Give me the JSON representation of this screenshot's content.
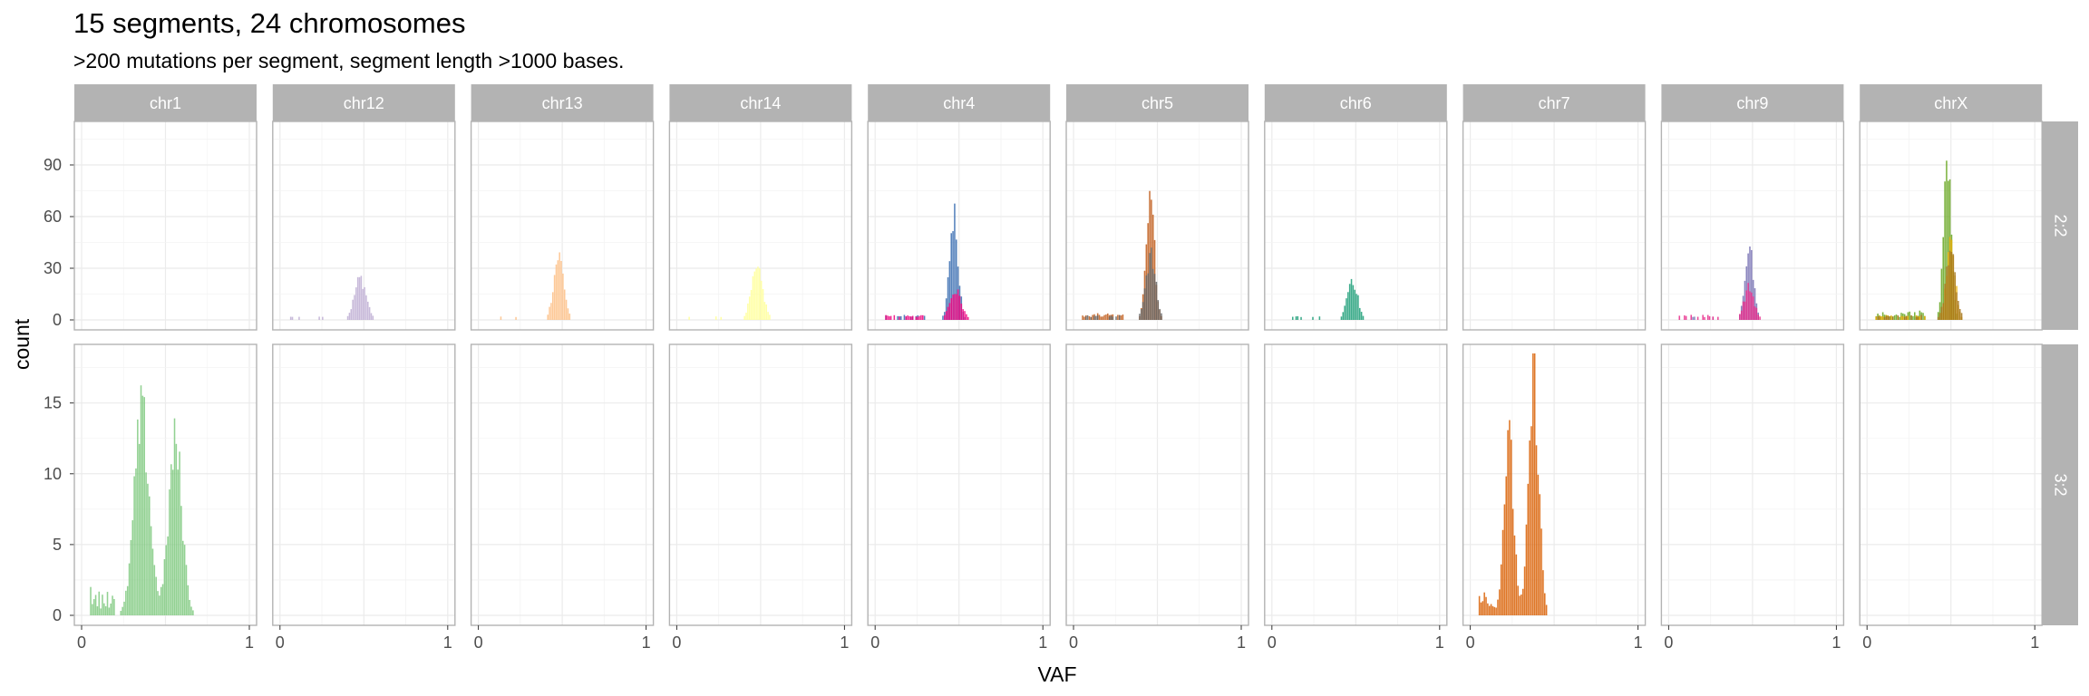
{
  "title": "15 segments, 24 chromosomes",
  "subtitle": ">200 mutations per segment, segment length >1000 bases.",
  "chart_data": {
    "type": "histogram",
    "xlabel": "VAF",
    "ylabel": "count",
    "xlim": [
      0,
      1
    ],
    "x_ticks": [
      0,
      1
    ],
    "grid": true,
    "facet_columns": [
      "chr1",
      "chr12",
      "chr13",
      "chr14",
      "chr4",
      "chr5",
      "chr6",
      "chr7",
      "chr9",
      "chrX"
    ],
    "facet_rows": [
      {
        "label": "2:2",
        "ylim": [
          0,
          110
        ],
        "y_ticks": [
          0,
          30,
          60,
          90
        ]
      },
      {
        "label": "3:2",
        "ylim": [
          0,
          18.5
        ],
        "y_ticks": [
          0,
          5,
          10,
          15
        ]
      }
    ],
    "panels": [
      {
        "row": "2:2",
        "col": "chr12",
        "segments": [
          {
            "color": "#beaed4",
            "peaks": [
              {
                "center": 0.48,
                "height": 26,
                "sd": 0.035
              }
            ],
            "tail": {
              "from": 0.05,
              "to": 0.3,
              "level": 2
            }
          }
        ]
      },
      {
        "row": "2:2",
        "col": "chr13",
        "segments": [
          {
            "color": "#fdc086",
            "peaks": [
              {
                "center": 0.48,
                "height": 40,
                "sd": 0.03
              }
            ],
            "tail": {
              "from": 0.05,
              "to": 0.3,
              "level": 2
            }
          }
        ]
      },
      {
        "row": "2:2",
        "col": "chr14",
        "segments": [
          {
            "color": "#ffff99",
            "peaks": [
              {
                "center": 0.48,
                "height": 30,
                "sd": 0.035
              }
            ],
            "tail": {
              "from": 0.05,
              "to": 0.3,
              "level": 2
            }
          }
        ]
      },
      {
        "row": "2:2",
        "col": "chr4",
        "segments": [
          {
            "color": "#386cb0",
            "peaks": [
              {
                "center": 0.47,
                "height": 66,
                "sd": 0.025
              }
            ],
            "tail": {
              "from": 0.05,
              "to": 0.3,
              "level": 3
            }
          },
          {
            "color": "#f0027f",
            "peaks": [
              {
                "center": 0.48,
                "height": 18,
                "sd": 0.035
              }
            ],
            "tail": {
              "from": 0.05,
              "to": 0.3,
              "level": 3
            }
          }
        ]
      },
      {
        "row": "2:2",
        "col": "chr5",
        "segments": [
          {
            "color": "#bf5b17",
            "peaks": [
              {
                "center": 0.46,
                "height": 72,
                "sd": 0.025
              }
            ],
            "tail": {
              "from": 0.05,
              "to": 0.3,
              "level": 4
            }
          },
          {
            "color": "#666666",
            "peaks": [
              {
                "center": 0.46,
                "height": 40,
                "sd": 0.03
              }
            ],
            "tail": {
              "from": 0.05,
              "to": 0.3,
              "level": 3
            }
          }
        ]
      },
      {
        "row": "2:2",
        "col": "chr6",
        "segments": [
          {
            "color": "#1b9e77",
            "peaks": [
              {
                "center": 0.48,
                "height": 26,
                "sd": 0.03
              }
            ],
            "tail": {
              "from": 0.05,
              "to": 0.3,
              "level": 2
            }
          }
        ]
      },
      {
        "row": "2:2",
        "col": "chr9",
        "segments": [
          {
            "color": "#7570b3",
            "peaks": [
              {
                "center": 0.48,
                "height": 45,
                "sd": 0.025
              }
            ],
            "tail": {
              "from": 0.05,
              "to": 0.3,
              "level": 2
            }
          },
          {
            "color": "#e7298a",
            "peaks": [
              {
                "center": 0.48,
                "height": 20,
                "sd": 0.03
              }
            ],
            "tail": {
              "from": 0.05,
              "to": 0.3,
              "level": 3
            }
          }
        ]
      },
      {
        "row": "2:2",
        "col": "chrX",
        "segments": [
          {
            "color": "#66a61e",
            "peaks": [
              {
                "center": 0.48,
                "height": 106,
                "sd": 0.022
              }
            ],
            "tail": {
              "from": 0.05,
              "to": 0.35,
              "level": 5
            }
          },
          {
            "color": "#e6ab02",
            "peaks": [
              {
                "center": 0.5,
                "height": 50,
                "sd": 0.025
              }
            ],
            "tail": {
              "from": 0.05,
              "to": 0.35,
              "level": 3
            }
          },
          {
            "color": "#a6761d",
            "peaks": [
              {
                "center": 0.5,
                "height": 40,
                "sd": 0.03
              }
            ],
            "tail": {
              "from": 0.05,
              "to": 0.35,
              "level": 3
            }
          }
        ]
      },
      {
        "row": "3:2",
        "col": "chr1",
        "segments": [
          {
            "color": "#7fc97f",
            "peaks": [
              {
                "center": 0.36,
                "height": 15,
                "sd": 0.045
              },
              {
                "center": 0.56,
                "height": 13,
                "sd": 0.04
              }
            ],
            "tail": {
              "from": 0.05,
              "to": 0.2,
              "level": 2
            }
          }
        ]
      },
      {
        "row": "3:2",
        "col": "chr7",
        "segments": [
          {
            "color": "#d95f02",
            "peaks": [
              {
                "center": 0.23,
                "height": 13,
                "sd": 0.03
              },
              {
                "center": 0.38,
                "height": 18,
                "sd": 0.03
              }
            ],
            "tail": {
              "from": 0.05,
              "to": 0.15,
              "level": 2
            }
          }
        ]
      }
    ]
  }
}
